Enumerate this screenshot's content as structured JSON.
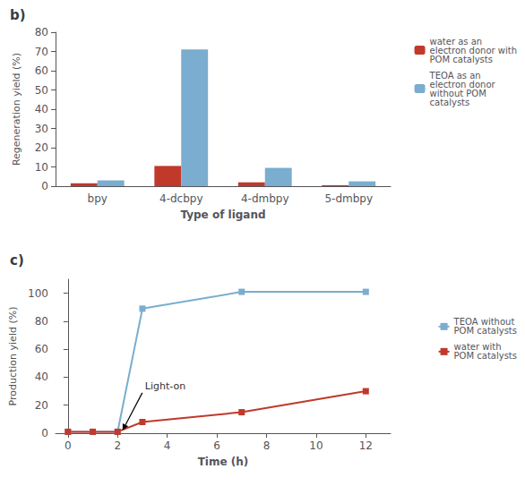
{
  "chart_data": [
    {
      "type": "bar",
      "title": "b)",
      "categories": [
        "bpy",
        "4-dcbpy",
        "4-dmbpy",
        "5-dmbpy"
      ],
      "series": [
        {
          "name": "water as an\nelectron donor with\nPOM catalysts",
          "color": "#c0392b",
          "values": [
            1.5,
            10.5,
            2.0,
            0.5
          ]
        },
        {
          "name": "TEOA as an\nelectron donor\nwithout POM\ncatalysts",
          "color": "#7aadcf",
          "values": [
            3.0,
            71.0,
            9.5,
            2.5
          ]
        }
      ],
      "xlabel": "Type of ligand",
      "ylabel": "Regeneration yield (%)",
      "ylim": [
        0,
        80
      ],
      "yticks": [
        0,
        10,
        20,
        30,
        40,
        50,
        60,
        70,
        80
      ],
      "legend": "upper right",
      "grid": false
    },
    {
      "type": "line",
      "title": "c)",
      "series": [
        {
          "name": "TEOA without\nPOM catalysts",
          "color": "#7aadcf",
          "marker": "square",
          "x": [
            0,
            1,
            2,
            3,
            7,
            12
          ],
          "values": [
            1,
            1,
            1,
            89,
            101,
            101
          ]
        },
        {
          "name": "water with\nPOM catalysts",
          "color": "#c0392b",
          "marker": "square",
          "x": [
            0,
            1,
            2,
            3,
            7,
            12
          ],
          "values": [
            1,
            1,
            1,
            8,
            15,
            30
          ]
        }
      ],
      "xlabel": "Time (h)",
      "ylabel": "Production yield (%)",
      "xlim": [
        -0.5,
        13
      ],
      "xticks": [
        0,
        2,
        4,
        6,
        8,
        10,
        12
      ],
      "ylim": [
        0,
        110
      ],
      "yticks": [
        0,
        20,
        40,
        60,
        80,
        100
      ],
      "annotations": [
        {
          "text": "Light-on",
          "x": 2.2,
          "y": 2
        }
      ],
      "legend": "right",
      "grid": false
    }
  ]
}
